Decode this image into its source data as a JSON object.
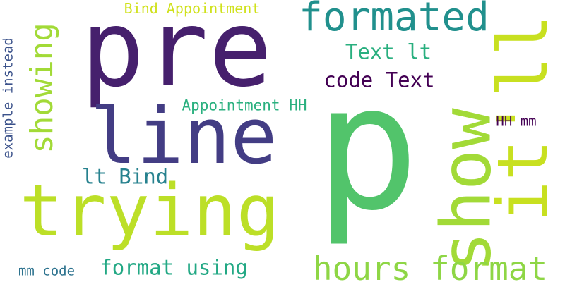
{
  "words": [
    {
      "text": "pre",
      "color": "#46206d"
    },
    {
      "text": "p",
      "color": "#52c46b"
    },
    {
      "text": "trying",
      "color": "#bcdf27"
    },
    {
      "text": "line",
      "color": "#433d84"
    },
    {
      "text": "show",
      "color": "#a2da37"
    },
    {
      "text": "it'll",
      "color": "#c8e020"
    },
    {
      "text": "formated",
      "color": "#21908d"
    },
    {
      "text": "hours format",
      "color": "#8ed645"
    },
    {
      "text": "showing",
      "color": "#a2da37"
    },
    {
      "text": "Text lt",
      "color": "#29af7f"
    },
    {
      "text": "code Text",
      "color": "#440154"
    },
    {
      "text": "format using",
      "color": "#22a884"
    },
    {
      "text": "lt Bind",
      "color": "#26818e"
    },
    {
      "text": "Appointment HH",
      "color": "#2ab07f"
    },
    {
      "text": "Bind Appointment",
      "color": "#d0e11c"
    },
    {
      "text": "example instead",
      "color": "#3b528b"
    },
    {
      "text": "HH mm",
      "color": "#440154"
    },
    {
      "text": "mm code",
      "color": "#2c728e"
    }
  ]
}
